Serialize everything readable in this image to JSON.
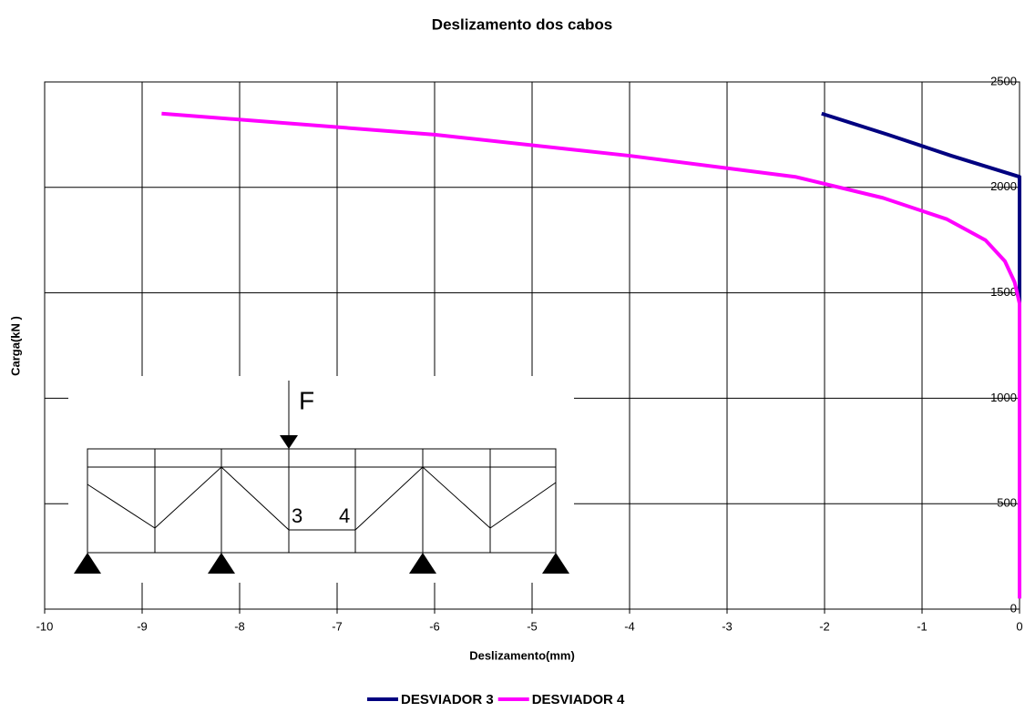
{
  "chart_data": {
    "type": "line",
    "title": "Deslizamento dos cabos",
    "x_label": "Deslizamento(mm)",
    "y_label": "Carga(kN )",
    "xlim": [
      -10,
      0
    ],
    "xticks": [
      -10,
      -9,
      -8,
      -7,
      -6,
      -5,
      -4,
      -3,
      -2,
      -1,
      0
    ],
    "ylim": [
      0,
      2500
    ],
    "yticks": [
      0,
      500,
      1000,
      1500,
      2000,
      2500
    ],
    "grid": true,
    "y_axis_side": "right",
    "legend": "bottom",
    "series": [
      {
        "name": "DESVIADOR 3",
        "color": "#000080",
        "x": [
          -2.03,
          -1.35,
          -0.7,
          0,
          0
        ],
        "values": [
          2350,
          2250,
          2150,
          2050,
          1450
        ]
      },
      {
        "name": "DESVIADOR 4",
        "color": "#ff00ff",
        "x": [
          -8.8,
          -6,
          -4,
          -2.3,
          -1.4,
          -0.75,
          -0.35,
          -0.15,
          -0.05,
          0,
          0
        ],
        "values": [
          2350,
          2250,
          2150,
          2050,
          1950,
          1850,
          1750,
          1650,
          1550,
          1450,
          50
        ]
      }
    ]
  },
  "inset": {
    "load_label": "F",
    "deviator_labels": [
      "3",
      "4"
    ]
  }
}
